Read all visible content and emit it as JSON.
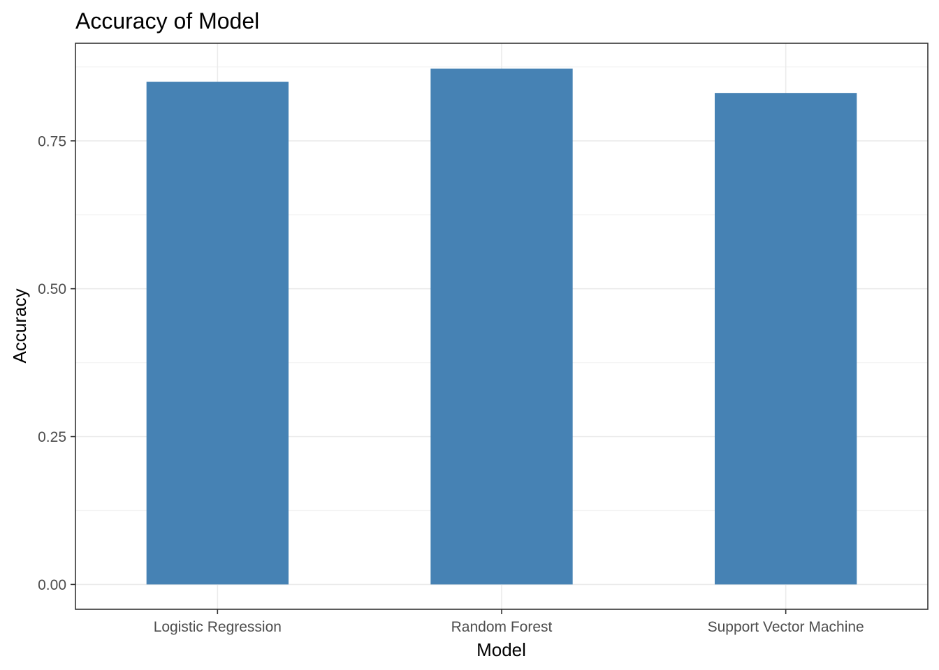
{
  "chart_data": {
    "type": "bar",
    "title": "Accuracy of Model",
    "xlabel": "Model",
    "ylabel": "Accuracy",
    "categories": [
      "Logistic Regression",
      "Random Forest",
      "Support Vector Machine"
    ],
    "values": [
      0.85,
      0.872,
      0.831
    ],
    "ylim": [
      -0.042,
      0.915
    ],
    "yticks": [
      0.0,
      0.25,
      0.5,
      0.75
    ],
    "ytick_labels": [
      "0.00",
      "0.25",
      "0.50",
      "0.75"
    ],
    "grid": true,
    "bar_color": "#4682B4",
    "panel_border_color": "#333333",
    "major_grid_color": "#EBEBEB",
    "minor_grid_color": "#F4F4F4"
  }
}
